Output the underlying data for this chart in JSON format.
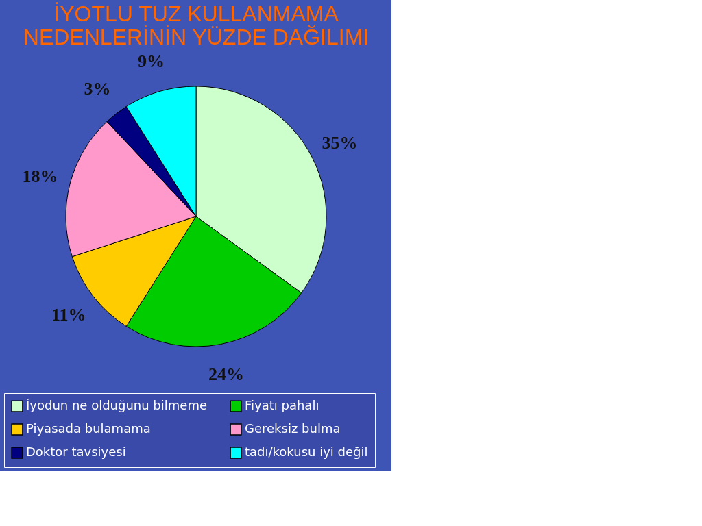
{
  "chart_data": {
    "type": "pie",
    "title": "İYOTLU TUZ KULLANMAMA NEDENLERİNİN YÜZDE DAĞILIMI",
    "categories": [
      "İyodun ne olduğunu bilmeme",
      "Fiyatı pahalı",
      "Piyasada bulamama",
      "Gereksiz bulma",
      "Doktor tavsiyesi",
      "tadı/kokusu iyi değil"
    ],
    "values": [
      35,
      24,
      11,
      18,
      3,
      9
    ],
    "colors": [
      "#ccffcc",
      "#00cc00",
      "#ffcc00",
      "#ff99cc",
      "#000080",
      "#00ffff"
    ],
    "value_labels": [
      "35%",
      "24%",
      "11%",
      "18%",
      "3%",
      "9%"
    ],
    "legend": "bottom"
  }
}
